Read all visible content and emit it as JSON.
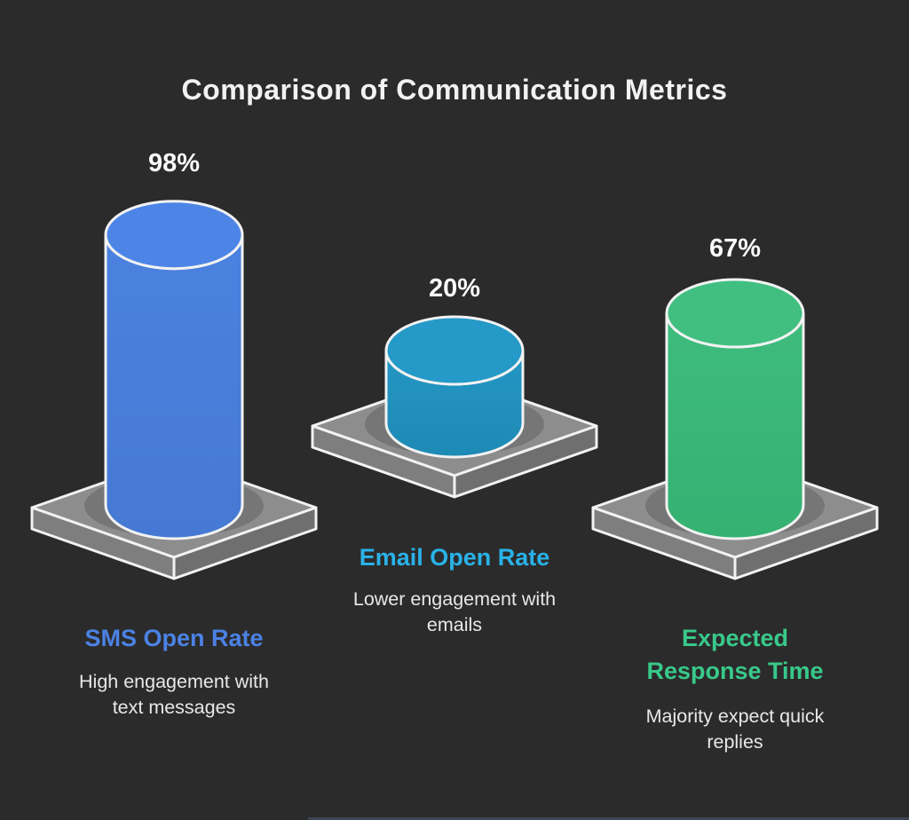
{
  "title": "Comparison of Communication Metrics",
  "chart_data": {
    "type": "bar",
    "title": "Comparison of Communication Metrics",
    "unit": "%",
    "ylim": [
      0,
      100
    ],
    "categories": [
      "SMS Open Rate",
      "Email Open Rate",
      "Expected Response Time"
    ],
    "values": [
      98,
      20,
      67
    ],
    "metrics": [
      {
        "label": "SMS Open Rate",
        "value": 98,
        "value_label": "98%",
        "description": "High engagement with text messages",
        "colors": {
          "label": "#4b82e4",
          "cap": "#4d85e6",
          "body_top": "#4b82e0",
          "body_bottom": "#4679d3"
        }
      },
      {
        "label": "Email Open Rate",
        "value": 20,
        "value_label": "20%",
        "description": "Lower engagement with emails",
        "colors": {
          "label": "#29b2e8",
          "cap": "#2599c7",
          "body_top": "#2496c4",
          "body_bottom": "#1e8ab5"
        }
      },
      {
        "label": "Expected Response Time",
        "value": 67,
        "value_label": "67%",
        "description": "Majority expect quick replies",
        "colors": {
          "label": "#38c98a",
          "cap": "#40bf81",
          "body_top": "#3ebc7e",
          "body_bottom": "#35b172"
        }
      }
    ]
  },
  "colors": {
    "background": "#2b2b2b",
    "title": "#f2f2f2",
    "value_label": "#fafafa",
    "description": "#e8e8e8",
    "platform_top": "#8d8d8d",
    "platform_left": "#7e7e7e",
    "platform_right": "#6f6f6f",
    "outline": "#f2f2f2",
    "bottom_line": "#3d4654"
  }
}
